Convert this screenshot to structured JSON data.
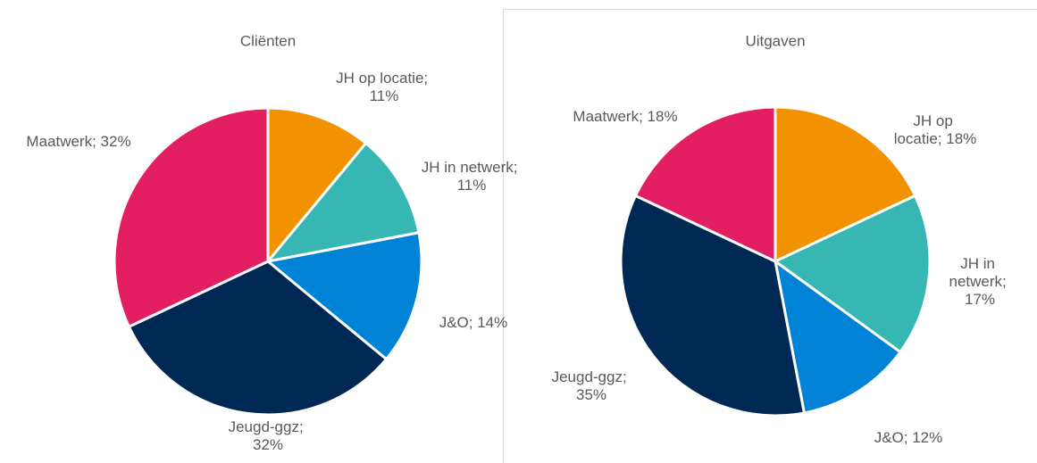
{
  "chart_data": [
    {
      "type": "pie",
      "title": "Cliënten",
      "values": [
        11,
        11,
        14,
        32,
        32
      ],
      "value_labels": [
        "JH op locatie; 11%",
        "JH in netwerk; 11%",
        "J&O; 14%",
        "Jeugd-ggz; 32%",
        "Maatwerk; 32%"
      ],
      "colors": [
        "#f39200",
        "#36b7b4",
        "#0082d6",
        "#002855",
        "#e31e63"
      ]
    },
    {
      "type": "pie",
      "title": "Uitgaven",
      "values": [
        18,
        17,
        12,
        35,
        18
      ],
      "value_labels": [
        "JH op locatie; 18%",
        "JH in netwerk; 17%",
        "J&O; 12%",
        "Jeugd-ggz; 35%",
        "Maatwerk; 18%"
      ],
      "colors": [
        "#f39200",
        "#36b7b4",
        "#0082d6",
        "#002855",
        "#e31e63"
      ]
    }
  ]
}
